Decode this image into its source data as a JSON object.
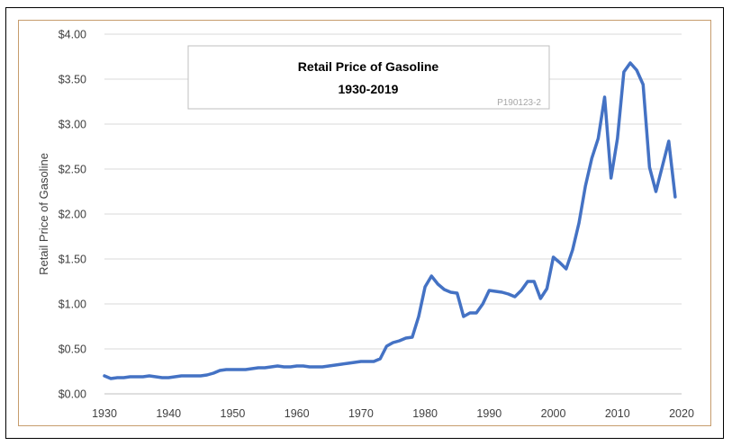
{
  "chart_data": {
    "type": "line",
    "title": "Retail Price of Gasoline",
    "subtitle": "1930-2019",
    "code": "P190123-2",
    "xlabel": "",
    "ylabel": "Retail Price of Gasoline",
    "xlim": [
      1930,
      2020
    ],
    "ylim": [
      0,
      4
    ],
    "x_ticks": [
      "1930",
      "1940",
      "1950",
      "1960",
      "1970",
      "1980",
      "1990",
      "2000",
      "2010",
      "2020"
    ],
    "y_ticks": [
      "$0.00",
      "$0.50",
      "$1.00",
      "$1.50",
      "$2.00",
      "$2.50",
      "$3.00",
      "$3.50",
      "$4.00"
    ],
    "grid": true,
    "legend": "none",
    "line_color": "#4472c4",
    "series": [
      {
        "x": [
          1930,
          1931,
          1932,
          1933,
          1934,
          1935,
          1936,
          1937,
          1938,
          1939,
          1940,
          1941,
          1942,
          1943,
          1944,
          1945,
          1946,
          1947,
          1948,
          1949,
          1950,
          1951,
          1952,
          1953,
          1954,
          1955,
          1956,
          1957,
          1958,
          1959,
          1960,
          1961,
          1962,
          1963,
          1964,
          1965,
          1966,
          1967,
          1968,
          1969,
          1970,
          1971,
          1972,
          1973,
          1974,
          1975,
          1976,
          1977,
          1978,
          1979,
          1980,
          1981,
          1982,
          1983,
          1984,
          1985,
          1986,
          1987,
          1988,
          1989,
          1990,
          1991,
          1992,
          1993,
          1994,
          1995,
          1996,
          1997,
          1998,
          1999,
          2000,
          2001,
          2002,
          2003,
          2004,
          2005,
          2006,
          2007,
          2008,
          2009,
          2010,
          2011,
          2012,
          2013,
          2014,
          2015,
          2016,
          2017,
          2018,
          2019
        ],
        "values": [
          0.2,
          0.17,
          0.18,
          0.18,
          0.19,
          0.19,
          0.19,
          0.2,
          0.19,
          0.18,
          0.18,
          0.19,
          0.2,
          0.2,
          0.2,
          0.2,
          0.21,
          0.23,
          0.26,
          0.27,
          0.27,
          0.27,
          0.27,
          0.28,
          0.29,
          0.29,
          0.3,
          0.31,
          0.3,
          0.3,
          0.31,
          0.31,
          0.3,
          0.3,
          0.3,
          0.31,
          0.32,
          0.33,
          0.34,
          0.35,
          0.36,
          0.36,
          0.36,
          0.39,
          0.53,
          0.57,
          0.59,
          0.62,
          0.63,
          0.86,
          1.19,
          1.31,
          1.22,
          1.16,
          1.13,
          1.12,
          0.86,
          0.9,
          0.9,
          1.0,
          1.15,
          1.14,
          1.13,
          1.11,
          1.08,
          1.15,
          1.25,
          1.25,
          1.06,
          1.17,
          1.52,
          1.46,
          1.39,
          1.6,
          1.9,
          2.31,
          2.62,
          2.84,
          3.3,
          2.4,
          2.84,
          3.58,
          3.68,
          3.6,
          3.44,
          2.52,
          2.25,
          2.53,
          2.81,
          2.19
        ]
      }
    ]
  }
}
